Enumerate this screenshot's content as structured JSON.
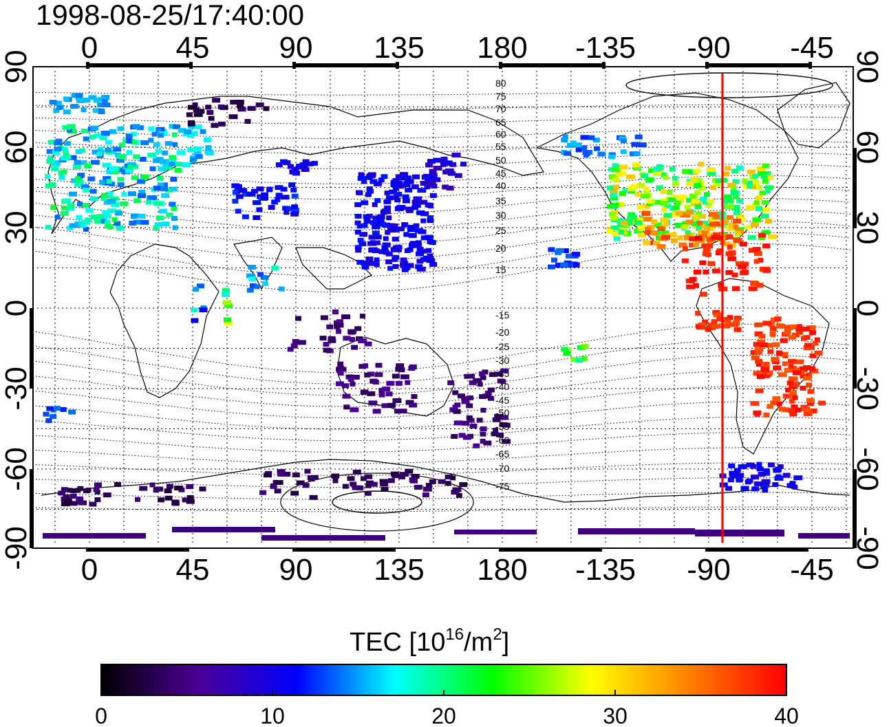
{
  "timestamp": "1998-08-25/17:40:00",
  "axes": {
    "lon_ticks_top": [
      "0",
      "45",
      "90",
      "135",
      "180",
      "-135",
      "-90",
      "-45"
    ],
    "lon_ticks_bottom": [
      "0",
      "45",
      "90",
      "135",
      "180",
      "-135",
      "-90",
      "-45"
    ],
    "lat_ticks_left": [
      "90",
      "60",
      "30",
      "0",
      "-30",
      "-60",
      "-90"
    ],
    "lat_ticks_right": [
      "90",
      "60",
      "30",
      "0",
      "-30",
      "-60",
      "-90"
    ]
  },
  "contour_labels": [
    "80",
    "75",
    "70",
    "65",
    "60",
    "55",
    "50",
    "45",
    "40",
    "35",
    "30",
    "25",
    "20",
    "15",
    "-15",
    "-20",
    "-25",
    "-30",
    "-35",
    "-40",
    "-45",
    "-50",
    "-55",
    "-60",
    "-65",
    "-70",
    "-75"
  ],
  "colorbar": {
    "title_prefix": "TEC  [10",
    "title_exp1": "16",
    "title_mid": "/m",
    "title_exp2": "2",
    "title_suffix": "]",
    "ticks": [
      "0",
      "10",
      "20",
      "30",
      "40"
    ],
    "colors": [
      "#000000",
      "#4b0096",
      "#0000ff",
      "#00ffff",
      "#00ff00",
      "#ffff00",
      "#ff8000",
      "#ff0000"
    ]
  },
  "marker_line": {
    "longitude": -84,
    "color": "#ff0000"
  }
}
